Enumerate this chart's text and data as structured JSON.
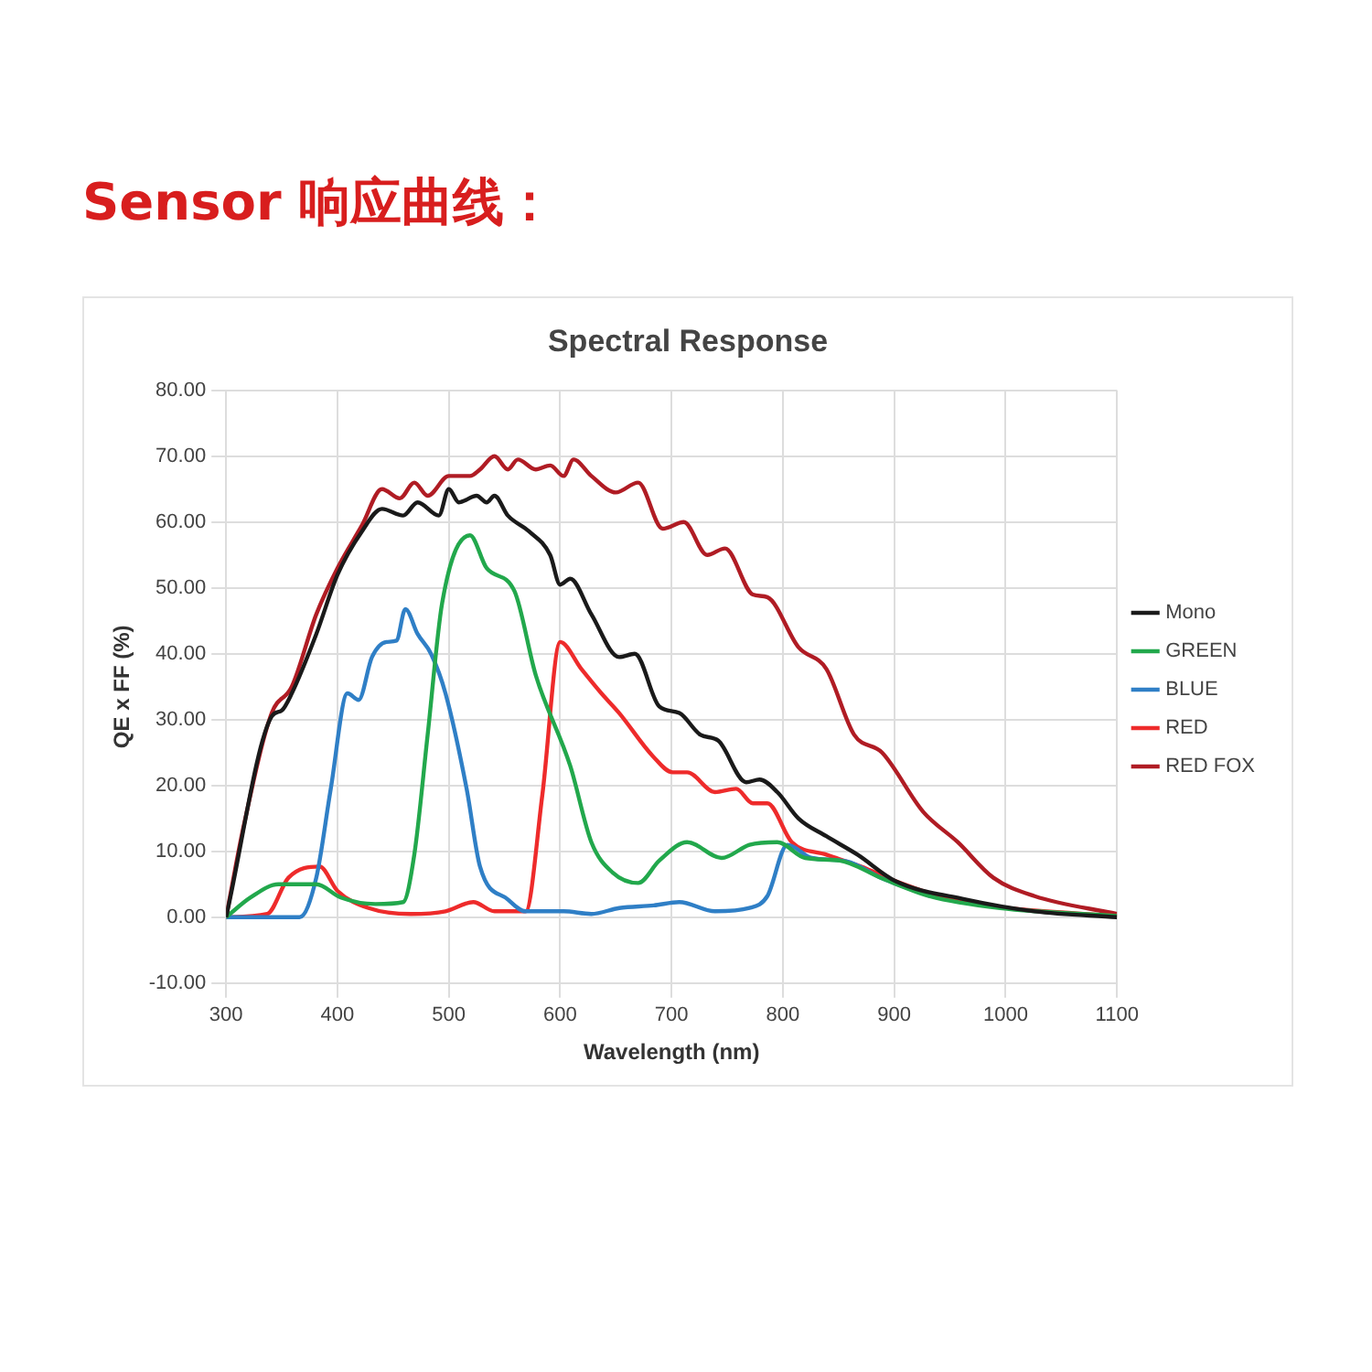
{
  "chart_data": {
    "type": "line",
    "title": "Sensor 响应曲线：",
    "subtitle": "Spectral Response",
    "xlabel": "Wavelength (nm)",
    "ylabel": "QE x FF (%)",
    "xlim": [
      300,
      1100
    ],
    "xticks": [
      300,
      400,
      500,
      600,
      700,
      800,
      900,
      1000,
      1100
    ],
    "ylim": [
      -10,
      80
    ],
    "yticks": [
      {
        "value": -10,
        "label": "-10.00"
      },
      {
        "value": 0,
        "label": "0.00"
      },
      {
        "value": 10,
        "label": "10.00"
      },
      {
        "value": 20,
        "label": "20.00"
      },
      {
        "value": 30,
        "label": "30.00"
      },
      {
        "value": 40,
        "label": "40.00"
      },
      {
        "value": 50,
        "label": "50.00"
      },
      {
        "value": 60,
        "label": "60.00"
      },
      {
        "value": 70,
        "label": "70.00"
      },
      {
        "value": 80,
        "label": "80.00"
      }
    ],
    "grid": true,
    "legend": "right",
    "marker": "none",
    "line_style": "solid",
    "series": [
      {
        "name": "Mono",
        "color": "#1a1a1a",
        "x": [
          300,
          341,
          350,
          359,
          381,
          400,
          422,
          440,
          459,
          472,
          491,
          500,
          509,
          525,
          534,
          541,
          553,
          572,
          591,
          600,
          609,
          628,
          653,
          667,
          689,
          707,
          726,
          742,
          767,
          779,
          795,
          814,
          839,
          867,
          901,
          964,
          1026,
          1100
        ],
        "values": [
          0,
          30.5,
          31.4,
          34,
          43,
          52,
          58.6,
          62,
          61,
          63,
          61,
          65,
          63,
          64,
          63,
          64,
          61,
          58.6,
          55,
          50.5,
          51.4,
          46,
          39.5,
          40,
          32,
          31,
          27.7,
          26.8,
          20.5,
          20.9,
          19,
          15,
          12.3,
          9.5,
          5.5,
          2.7,
          0.9,
          0
        ]
      },
      {
        "name": "GREEN",
        "color": "#22a84c",
        "x": [
          300,
          322,
          347,
          381,
          403,
          434,
          459,
          469,
          481,
          494,
          519,
          534,
          559,
          578,
          609,
          628,
          647,
          670,
          689,
          714,
          745,
          770,
          795,
          820,
          851,
          889,
          932,
          995,
          1100
        ],
        "values": [
          0,
          3,
          5,
          5,
          3,
          2,
          2.3,
          9.5,
          27.7,
          47.7,
          58,
          53,
          49.5,
          36.8,
          23,
          11.4,
          6.8,
          5.2,
          8.6,
          11.4,
          9,
          11,
          11.4,
          9,
          8.6,
          5.9,
          3.2,
          1.4,
          0.2
        ]
      },
      {
        "name": "BLUE",
        "color": "#2f7fc6",
        "x": [
          300,
          366,
          381,
          394,
          409,
          419,
          431,
          444,
          453,
          461,
          472,
          484,
          497,
          516,
          528,
          553,
          569,
          603,
          628,
          653,
          684,
          707,
          739,
          770,
          786,
          804,
          826,
          857,
          889,
          932
        ],
        "values": [
          0,
          0,
          6,
          19.5,
          34,
          33,
          39.5,
          41.8,
          42,
          46.8,
          43,
          40,
          34,
          19.5,
          7.7,
          2.7,
          0.9,
          0.9,
          0.5,
          1.4,
          1.8,
          2.3,
          0.9,
          1.4,
          3.2,
          11,
          9,
          8.5,
          5.9,
          3.2
        ]
      },
      {
        "name": "RED",
        "color": "#ee2b2b",
        "x": [
          300,
          337,
          356,
          384,
          400,
          428,
          466,
          497,
          522,
          541,
          569,
          584,
          600,
          619,
          637,
          653,
          683,
          701,
          714,
          739,
          758,
          773,
          786,
          808,
          839,
          870,
          901,
          951,
          1001,
          1100
        ],
        "values": [
          0,
          0.5,
          6,
          7.7,
          4,
          1.4,
          0.5,
          0.9,
          2.3,
          0.9,
          0.9,
          18.6,
          41.8,
          37.7,
          34,
          31,
          24.5,
          22,
          22,
          19,
          19.5,
          17.3,
          17.3,
          11.4,
          9.5,
          7.7,
          5.5,
          2.7,
          1.4,
          0.2
        ]
      },
      {
        "name": "RED FOX",
        "color": "#b01c24",
        "x": [
          300,
          316,
          341,
          359,
          381,
          400,
          422,
          440,
          456,
          469,
          481,
          500,
          519,
          528,
          541,
          553,
          562,
          578,
          591,
          603,
          612,
          628,
          650,
          670,
          692,
          711,
          732,
          748,
          773,
          786,
          814,
          839,
          864,
          889,
          926,
          957,
          989,
          1026,
          1100
        ],
        "values": [
          0,
          14,
          31,
          35,
          46,
          53,
          59.5,
          65,
          63.6,
          66,
          64,
          67,
          67,
          68,
          70,
          68,
          69.5,
          68,
          68.6,
          67,
          69.5,
          67,
          64.5,
          66,
          59,
          60,
          55,
          56,
          49,
          48.6,
          41,
          37.7,
          27.7,
          25,
          16,
          11.4,
          6,
          3.2,
          0.5
        ]
      }
    ]
  }
}
